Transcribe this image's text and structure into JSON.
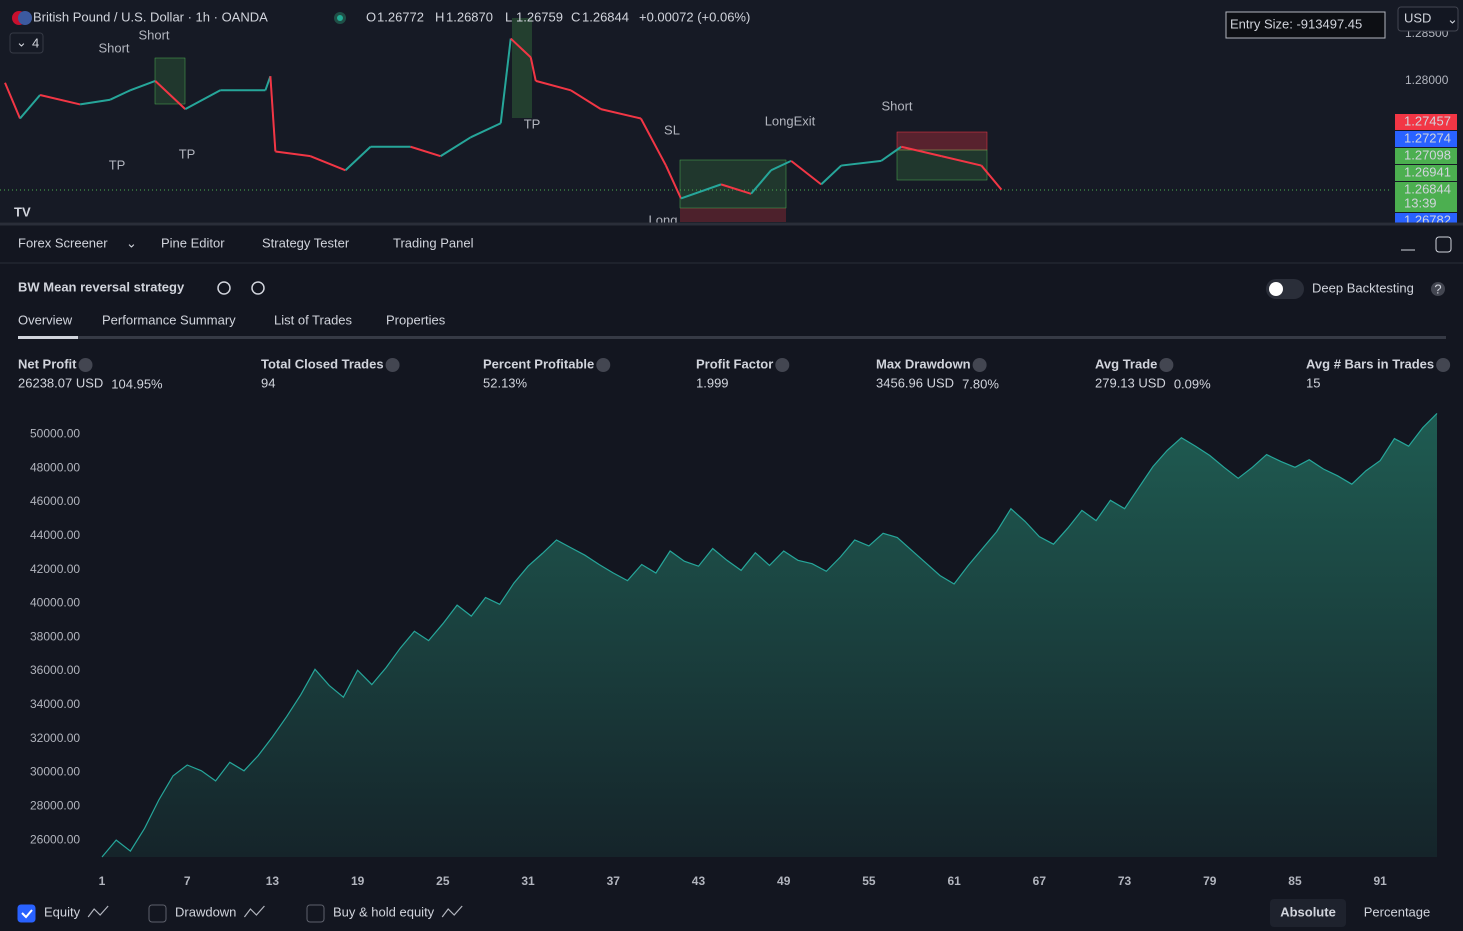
{
  "header": {
    "symbol": "British Pound / U.S. Dollar · 1h · OANDA",
    "ohlc": [
      {
        "key": "O",
        "value": 1.26772
      },
      {
        "key": "H",
        "value": 1.2687
      },
      {
        "key": "L",
        "value": 1.26759
      },
      {
        "key": "C",
        "value": 1.26844
      }
    ],
    "ohlc_labels": [
      "1.26772",
      "1.26870",
      "1.26759",
      "1.26844"
    ],
    "change": "+0.00072 (+0.06%)",
    "indicator_count": "4",
    "entry_size": "Entry Size: -913497.45",
    "currency": "USD"
  },
  "price_chart": {
    "type": "line",
    "x": [
      1,
      4,
      8,
      16,
      22,
      26,
      31,
      37,
      44,
      53,
      54,
      55,
      62,
      69,
      74,
      82,
      88,
      94,
      100,
      102,
      106,
      107,
      114,
      120,
      128,
      133,
      136,
      144,
      150,
      154,
      158,
      164,
      168,
      176,
      180,
      188,
      196,
      200
    ],
    "values": [
      1.2798,
      1.276,
      1.2785,
      1.2775,
      1.278,
      1.279,
      1.28,
      1.277,
      1.279,
      1.279,
      1.2805,
      1.2725,
      1.272,
      1.2705,
      1.273,
      1.273,
      1.272,
      1.274,
      1.2755,
      1.2845,
      1.2825,
      1.28,
      1.279,
      1.277,
      1.276,
      1.271,
      1.2675,
      1.269,
      1.268,
      1.2705,
      1.2715,
      1.269,
      1.271,
      1.2715,
      1.273,
      1.272,
      1.271,
      1.26844
    ],
    "up_color": "#26a69a",
    "down_color": "#f23645",
    "xlim": [
      0,
      278
    ],
    "ylim": [
      1.265,
      1.2886
    ],
    "yticks": [
      {
        "value": 1.28,
        "label": "1.28000"
      },
      {
        "value": 1.285,
        "label": "1.28500"
      }
    ],
    "annotations": [
      "Short",
      "Short",
      "TP",
      "TP",
      "TP",
      "SL",
      "LongExit",
      "Short",
      "Long"
    ],
    "price_tags": [
      {
        "value": 1.27457,
        "color": "#f23645"
      },
      {
        "value": 1.27274,
        "color": "#2962ff"
      },
      {
        "value": 1.27098,
        "color": "#4caf50"
      },
      {
        "value": 1.26941,
        "color": "#4caf50"
      },
      {
        "value": 1.26844,
        "color": "#4caf50",
        "time": "13:39"
      },
      {
        "value": 1.26782,
        "color": "#2962ff"
      }
    ]
  },
  "tabs": [
    "Forex Screener",
    "Pine Editor",
    "Strategy Tester",
    "Trading Panel"
  ],
  "strategy_name": "BW Mean reversal strategy",
  "deep_backtesting": "Deep Backtesting",
  "subtabs": [
    "Overview",
    "Performance Summary",
    "List of Trades",
    "Properties"
  ],
  "metrics": [
    {
      "label": "Net Profit",
      "value": "26238.07 USD",
      "percent": "104.95%",
      "color": "#22ab94"
    },
    {
      "label": "Total Closed Trades",
      "value": "94",
      "color": "#d1d4dc"
    },
    {
      "label": "Percent Profitable",
      "value": "52.13%",
      "color": "#22ab94"
    },
    {
      "label": "Profit Factor",
      "value": "1.999",
      "color": "#22ab94"
    },
    {
      "label": "Max Drawdown",
      "value": "3456.96 USD",
      "percent": "7.80%",
      "color": "#f23645"
    },
    {
      "label": "Avg Trade",
      "value": "279.13 USD",
      "percent": "0.09%",
      "color": "#22ab94"
    },
    {
      "label": "Avg # Bars in Trades",
      "value": "15",
      "color": "#d1d4dc"
    }
  ],
  "chart_data": {
    "type": "area",
    "series": [
      {
        "name": "Equity",
        "color": "#26a69a",
        "values": [
          25000,
          26000,
          25350,
          26700,
          28370,
          29800,
          30440,
          30100,
          29500,
          30600,
          30100,
          31000,
          32100,
          33300,
          34600,
          36100,
          35150,
          34450,
          36050,
          35200,
          36200,
          37350,
          38350,
          37800,
          38800,
          39900,
          39250,
          40350,
          39950,
          41200,
          42200,
          42950,
          43750,
          43300,
          42850,
          42300,
          41800,
          41350,
          42300,
          41800,
          43100,
          42500,
          42200,
          43250,
          42550,
          41950,
          43000,
          42250,
          43100,
          42550,
          42350,
          41900,
          42750,
          43750,
          43400,
          44150,
          43900,
          43150,
          42400,
          41650,
          41150,
          42250,
          43250,
          44250,
          45600,
          44850,
          43950,
          43500,
          44450,
          45500,
          44900,
          46100,
          45600,
          46850,
          48100,
          49050,
          49800,
          49300,
          48750,
          48050,
          47400,
          48050,
          48800,
          48400,
          48050,
          48500,
          47950,
          47550,
          47050,
          47850,
          48450,
          49750,
          49300,
          50400,
          51238.07
        ]
      }
    ],
    "x": [
      1,
      2,
      3,
      4,
      5,
      6,
      7,
      8,
      9,
      10,
      11,
      12,
      13,
      14,
      15,
      16,
      17,
      18,
      19,
      20,
      21,
      22,
      23,
      24,
      25,
      26,
      27,
      28,
      29,
      30,
      31,
      32,
      33,
      34,
      35,
      36,
      37,
      38,
      39,
      40,
      41,
      42,
      43,
      44,
      45,
      46,
      47,
      48,
      49,
      50,
      51,
      52,
      53,
      54,
      55,
      56,
      57,
      58,
      59,
      60,
      61,
      62,
      63,
      64,
      65,
      66,
      67,
      68,
      69,
      70,
      71,
      72,
      73,
      74,
      75,
      76,
      77,
      78,
      79,
      80,
      81,
      82,
      83,
      84,
      85,
      86,
      87,
      88,
      89,
      90,
      91,
      92,
      93,
      94,
      95
    ],
    "xlim": [
      1,
      95
    ],
    "xticks": [
      1,
      7,
      13,
      19,
      25,
      31,
      37,
      43,
      49,
      55,
      61,
      67,
      73,
      79,
      85,
      91
    ],
    "ylim": [
      25000,
      51500
    ],
    "yticks": [
      {
        "value": 26000,
        "label": "26000.00"
      },
      {
        "value": 28000,
        "label": "28000.00"
      },
      {
        "value": 30000,
        "label": "30000.00"
      },
      {
        "value": 32000,
        "label": "32000.00"
      },
      {
        "value": 34000,
        "label": "34000.00"
      },
      {
        "value": 36000,
        "label": "36000.00"
      },
      {
        "value": 38000,
        "label": "38000.00"
      },
      {
        "value": 40000,
        "label": "40000.00"
      },
      {
        "value": 42000,
        "label": "42000.00"
      },
      {
        "value": 44000,
        "label": "44000.00"
      },
      {
        "value": 46000,
        "label": "46000.00"
      },
      {
        "value": 48000,
        "label": "48000.00"
      },
      {
        "value": 50000,
        "label": "50000.00"
      }
    ],
    "grid": false
  },
  "legend": [
    {
      "label": "Equity",
      "checked": true
    },
    {
      "label": "Drawdown",
      "checked": false
    },
    {
      "label": "Buy & hold equity",
      "checked": false
    }
  ],
  "modes": [
    "Absolute",
    "Percentage"
  ]
}
